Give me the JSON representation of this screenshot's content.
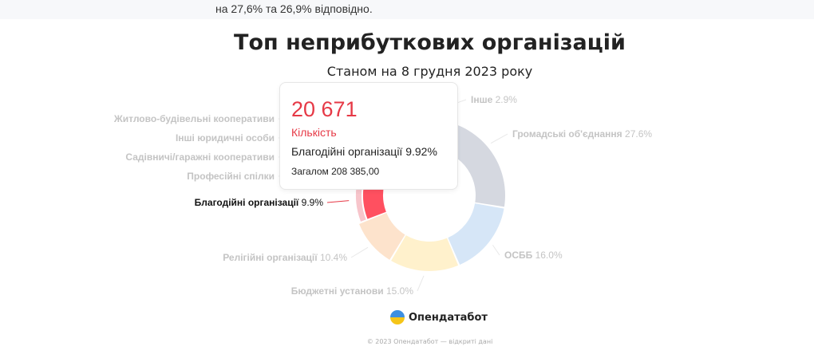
{
  "intro_text": "на 27,6% та 26,9% відповідно.",
  "chart_data": {
    "type": "pie",
    "title": "Топ неприбуткових організацій",
    "subtitle": "Станом на 8 грудня 2023 року",
    "slices": [
      {
        "name": "Громадські об'єднання",
        "value": 27.6,
        "pct_label": "27.6%",
        "color": "#d5d8e0"
      },
      {
        "name": "ОСББ",
        "value": 16.0,
        "pct_label": "16.0%",
        "color": "#d6e6f7"
      },
      {
        "name": "Бюджетні установи",
        "value": 15.0,
        "pct_label": "15.0%",
        "color": "#fff1cc"
      },
      {
        "name": "Релігійні організації",
        "value": 10.4,
        "pct_label": "10.4%",
        "color": "#fde3cc"
      },
      {
        "name": "Благодійні організації",
        "value": 9.9,
        "pct_label": "9.9%",
        "color": "#ff5060",
        "active": true
      },
      {
        "name": "Професійні спілки",
        "value": 4.5,
        "pct_label": "",
        "color": "#fbeff0"
      },
      {
        "name": "Садівничі/гаражні кооперативи",
        "value": 4.5,
        "pct_label": "",
        "color": "#fbf3ee"
      },
      {
        "name": "Інші юридичні особи",
        "value": 4.6,
        "pct_label": "",
        "color": "#f6f6f4"
      },
      {
        "name": "Житлово-будівельні кооперативи",
        "value": 4.6,
        "pct_label": "",
        "color": "#f4f4f8"
      },
      {
        "name": "Інше",
        "value": 2.9,
        "pct_label": "2.9%",
        "color": "#f6f6f6"
      }
    ]
  },
  "tooltip": {
    "value": "20 671",
    "label": "Кількість",
    "name": "Благодійні організації 9.92%",
    "total": "Загалом 208 385,00"
  },
  "footer": {
    "brand": "Опендатабот",
    "copyright": "© 2023 Опендатабот — відкриті дані"
  }
}
